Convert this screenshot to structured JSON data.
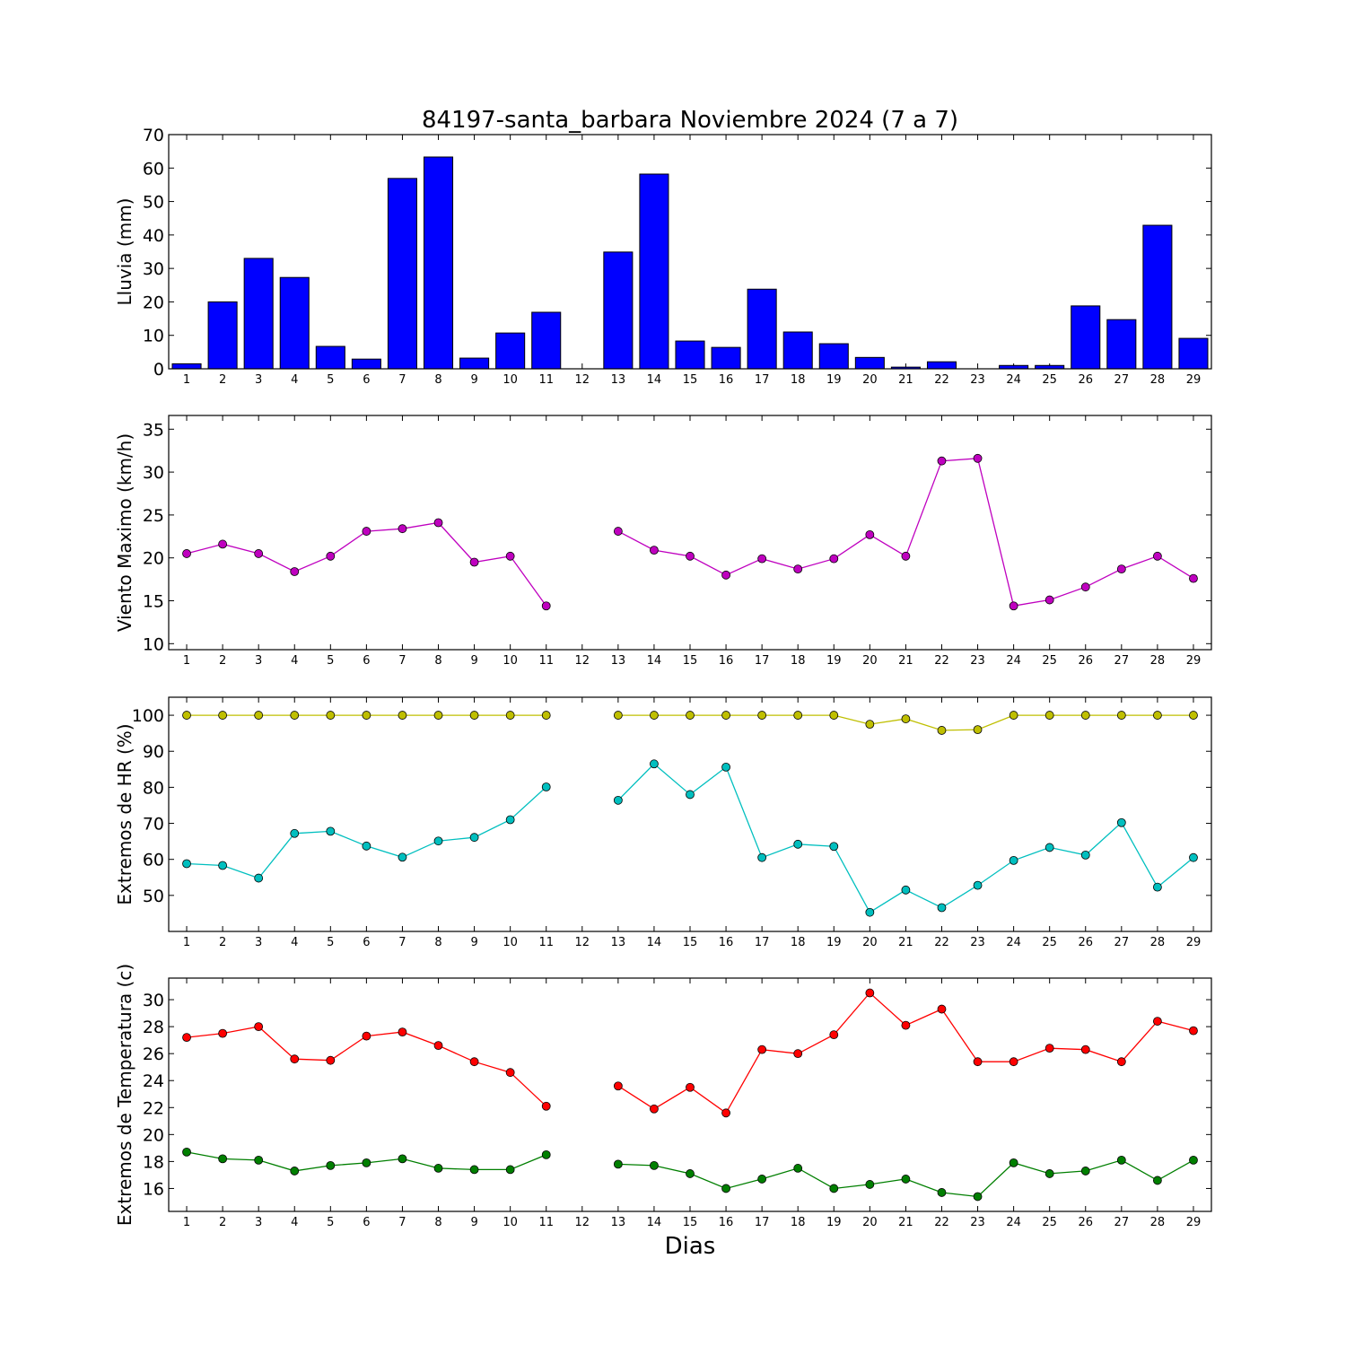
{
  "chart_data": [
    {
      "type": "bar",
      "title": "84197-santa_barbara Noviembre 2024  (7 a 7)",
      "ylabel": "Lluvia (mm)",
      "xlabel": "",
      "x": [
        1,
        2,
        3,
        4,
        5,
        6,
        7,
        8,
        9,
        10,
        11,
        12,
        13,
        14,
        15,
        16,
        17,
        18,
        19,
        20,
        21,
        22,
        23,
        24,
        25,
        26,
        27,
        28,
        29
      ],
      "ylim": [
        0,
        70
      ],
      "yticks": [
        0,
        10,
        20,
        30,
        40,
        50,
        60,
        70
      ],
      "series": [
        {
          "color": "#0000ff",
          "values": [
            1.5,
            20,
            33,
            27.3,
            6.7,
            2.9,
            56.9,
            63.3,
            3.2,
            10.7,
            16.9,
            0,
            34.9,
            58.2,
            8.3,
            6.4,
            23.8,
            11,
            7.5,
            3.4,
            0.5,
            2.1,
            0,
            1,
            1,
            18.8,
            14.7,
            42.9,
            9.1
          ]
        }
      ]
    },
    {
      "type": "line",
      "title": "",
      "ylabel": "Viento Maximo (km/h)",
      "xlabel": "",
      "x": [
        1,
        2,
        3,
        4,
        5,
        6,
        7,
        8,
        9,
        10,
        11,
        12,
        13,
        14,
        15,
        16,
        17,
        18,
        19,
        20,
        21,
        22,
        23,
        24,
        25,
        26,
        27,
        28,
        29
      ],
      "ylim": [
        9.3,
        36.6
      ],
      "yticks": [
        10,
        15,
        20,
        25,
        30,
        35
      ],
      "series": [
        {
          "color": "#bf00bf",
          "values": [
            20.5,
            21.6,
            20.5,
            18.4,
            20.2,
            23.1,
            23.4,
            24.1,
            19.5,
            20.2,
            14.4,
            null,
            23.1,
            20.9,
            20.2,
            18,
            19.9,
            18.7,
            19.9,
            22.7,
            20.2,
            31.3,
            31.6,
            14.4,
            15.1,
            16.6,
            18.7,
            20.2,
            17.6
          ]
        }
      ]
    },
    {
      "type": "line",
      "title": "",
      "ylabel": "Extremos de HR (%)",
      "xlabel": "",
      "x": [
        1,
        2,
        3,
        4,
        5,
        6,
        7,
        8,
        9,
        10,
        11,
        12,
        13,
        14,
        15,
        16,
        17,
        18,
        19,
        20,
        21,
        22,
        23,
        24,
        25,
        26,
        27,
        28,
        29
      ],
      "ylim": [
        40,
        105
      ],
      "yticks": [
        50,
        60,
        70,
        80,
        90,
        100
      ],
      "series": [
        {
          "color": "#bfbf00",
          "values": [
            100,
            100,
            100,
            100,
            100,
            100,
            100,
            100,
            100,
            100,
            100,
            null,
            100,
            100,
            100,
            100,
            100,
            100,
            100,
            97.5,
            99,
            95.8,
            96,
            100,
            100,
            100,
            100,
            100,
            100
          ]
        },
        {
          "color": "#00bfbf",
          "values": [
            58.8,
            58.3,
            54.8,
            67.2,
            67.8,
            63.7,
            60.6,
            65.1,
            66.1,
            71,
            80.1,
            null,
            76.4,
            86.5,
            78,
            85.6,
            60.5,
            64.2,
            63.6,
            45.3,
            51.5,
            46.6,
            52.8,
            59.7,
            63.3,
            61.2,
            70.2,
            52.3,
            60.5
          ]
        }
      ]
    },
    {
      "type": "line",
      "title": "",
      "ylabel": "Extremos de Temperatura (c)",
      "xlabel": "Dias",
      "x": [
        1,
        2,
        3,
        4,
        5,
        6,
        7,
        8,
        9,
        10,
        11,
        12,
        13,
        14,
        15,
        16,
        17,
        18,
        19,
        20,
        21,
        22,
        23,
        24,
        25,
        26,
        27,
        28,
        29
      ],
      "ylim": [
        14.3,
        31.6
      ],
      "yticks": [
        16,
        18,
        20,
        22,
        24,
        26,
        28,
        30
      ],
      "series": [
        {
          "color": "#ff0000",
          "values": [
            27.2,
            27.5,
            28,
            25.6,
            25.5,
            27.3,
            27.6,
            26.6,
            25.4,
            24.6,
            22.1,
            null,
            23.6,
            21.9,
            23.5,
            21.6,
            26.3,
            26,
            27.4,
            30.5,
            28.1,
            29.3,
            25.4,
            25.4,
            26.4,
            26.3,
            25.4,
            28.4,
            27.7
          ]
        },
        {
          "color": "#007f00",
          "values": [
            18.7,
            18.2,
            18.1,
            17.3,
            17.7,
            17.9,
            18.2,
            17.5,
            17.4,
            17.4,
            18.5,
            null,
            17.8,
            17.7,
            17.1,
            16,
            16.7,
            17.5,
            16,
            16.3,
            16.7,
            15.7,
            15.4,
            17.9,
            17.1,
            17.3,
            18.1,
            16.6,
            18.1
          ]
        }
      ]
    }
  ]
}
